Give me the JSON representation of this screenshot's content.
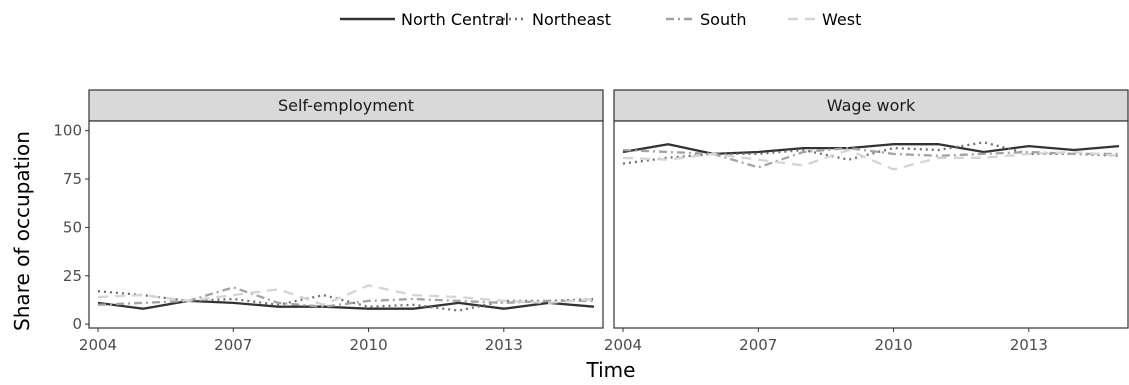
{
  "chart_data": {
    "type": "line",
    "xlabel": "Time",
    "ylabel": "Share of occupation",
    "xlim": [
      2003.8,
      2015.2
    ],
    "ylim": [
      -2,
      105
    ],
    "x_ticks": [
      2004,
      2007,
      2010,
      2013
    ],
    "y_ticks": [
      0,
      25,
      50,
      75,
      100
    ],
    "legend_position": "top",
    "x": [
      2004,
      2005,
      2006,
      2007,
      2008,
      2009,
      2010,
      2011,
      2012,
      2013,
      2014,
      2015
    ],
    "panels": [
      {
        "title": "Self-employment",
        "series": [
          {
            "name": "North Central",
            "values": [
              11,
              8,
              12,
              11,
              9,
              9,
              8,
              8,
              11,
              8,
              11,
              9
            ]
          },
          {
            "name": "Northeast",
            "values": [
              17,
              15,
              12,
              13,
              10,
              15,
              9,
              10,
              7,
              12,
              12,
              13
            ]
          },
          {
            "name": "South",
            "values": [
              10,
              11,
              12,
              19,
              11,
              9,
              12,
              13,
              12,
              11,
              12,
              12
            ]
          },
          {
            "name": "West",
            "values": [
              14,
              15,
              12,
              15,
              18,
              10,
              20,
              15,
              14,
              12,
              11,
              13
            ]
          }
        ]
      },
      {
        "title": "Wage work",
        "series": [
          {
            "name": "North Central",
            "values": [
              89,
              93,
              88,
              89,
              91,
              91,
              93,
              93,
              89,
              92,
              90,
              92
            ]
          },
          {
            "name": "Northeast",
            "values": [
              83,
              86,
              88,
              88,
              90,
              85,
              91,
              90,
              94,
              88,
              88,
              87
            ]
          },
          {
            "name": "South",
            "values": [
              90,
              89,
              88,
              81,
              89,
              91,
              88,
              87,
              88,
              89,
              88,
              88
            ]
          },
          {
            "name": "West",
            "values": [
              86,
              85,
              88,
              85,
              82,
              90,
              80,
              86,
              86,
              88,
              89,
              87
            ]
          }
        ]
      }
    ],
    "series_styles": [
      {
        "name": "North Central",
        "color": "#333333",
        "dash": "solid"
      },
      {
        "name": "Northeast",
        "color": "#707070",
        "dash": "dotted"
      },
      {
        "name": "South",
        "color": "#a3a3a3",
        "dash": "dashdot"
      },
      {
        "name": "West",
        "color": "#d4d4d4",
        "dash": "dashed"
      }
    ]
  }
}
